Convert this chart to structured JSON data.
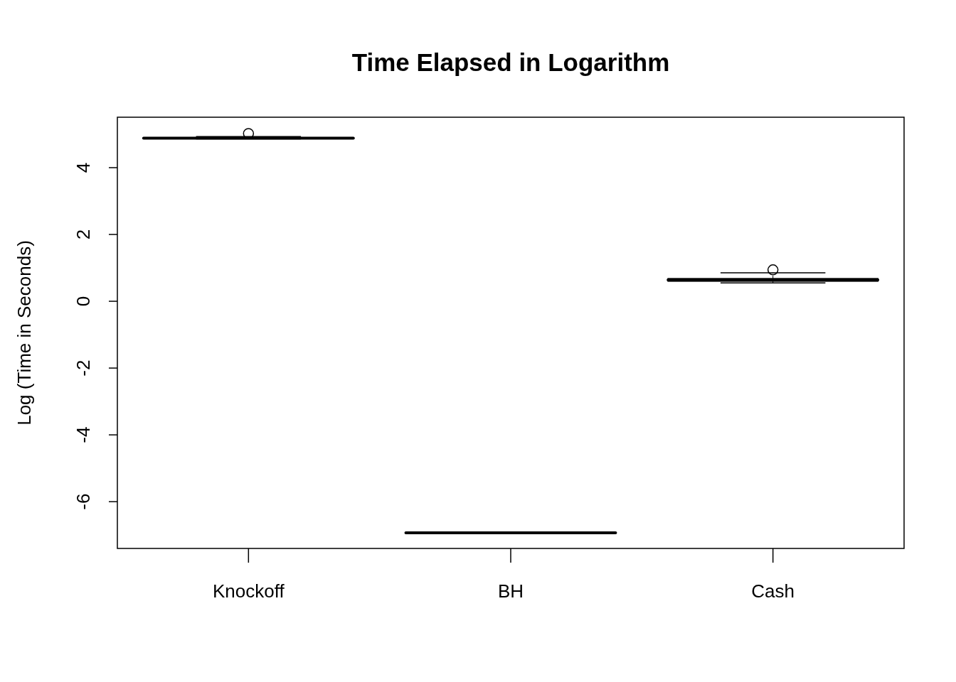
{
  "chart_data": {
    "type": "box",
    "title": "Time Elapsed in Logarithm",
    "ylabel": "Log (Time in Seconds)",
    "categories": [
      "Knockoff",
      "BH",
      "Cash"
    ],
    "boxes": [
      {
        "low": 4.86,
        "q1": 4.87,
        "median": 4.88,
        "q3": 4.9,
        "high": 4.93,
        "outliers": [
          5.02
        ]
      },
      {
        "low": -6.93,
        "q1": -6.93,
        "median": -6.93,
        "q3": -6.93,
        "high": -6.93
      },
      {
        "low": 0.55,
        "q1": 0.6,
        "median": 0.64,
        "q3": 0.68,
        "high": 0.85,
        "outliers": [
          0.94
        ]
      }
    ],
    "ylim": [
      -7.4,
      5.51
    ],
    "yticks": [
      -6,
      -4,
      -2,
      0,
      2,
      4
    ],
    "grid": false
  }
}
